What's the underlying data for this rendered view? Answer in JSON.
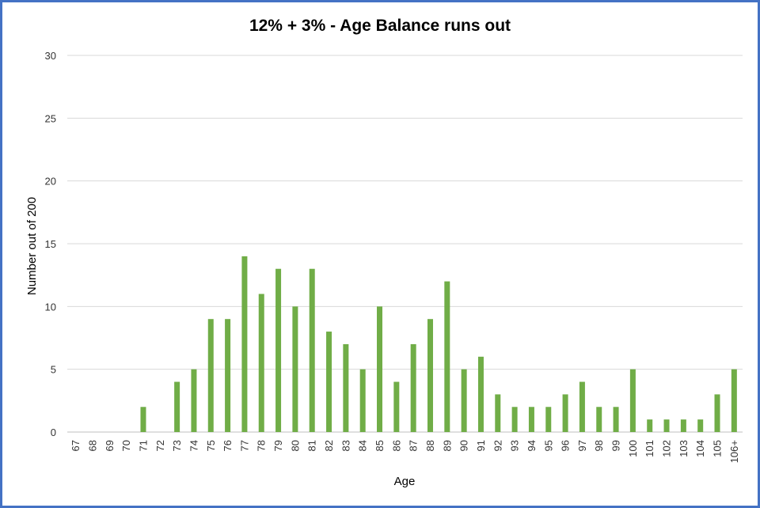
{
  "chart_data": {
    "type": "bar",
    "title": "12% + 3% - Age Balance runs out",
    "xlabel": "Age",
    "ylabel": "Number out of 200",
    "ylim": [
      0,
      30
    ],
    "yticks": [
      0,
      5,
      10,
      15,
      20,
      25,
      30
    ],
    "grid": true,
    "legend": "none",
    "bar_color": "#70ad47",
    "categories": [
      "67",
      "68",
      "69",
      "70",
      "71",
      "72",
      "73",
      "74",
      "75",
      "76",
      "77",
      "78",
      "79",
      "80",
      "81",
      "82",
      "83",
      "84",
      "85",
      "86",
      "87",
      "88",
      "89",
      "90",
      "91",
      "92",
      "93",
      "94",
      "95",
      "96",
      "97",
      "98",
      "99",
      "100",
      "101",
      "102",
      "103",
      "104",
      "105",
      "106+"
    ],
    "values": [
      0,
      0,
      0,
      0,
      2,
      0,
      4,
      5,
      9,
      9,
      14,
      11,
      13,
      10,
      13,
      8,
      7,
      5,
      10,
      4,
      7,
      9,
      12,
      5,
      6,
      3,
      2,
      2,
      2,
      3,
      4,
      2,
      2,
      5,
      1,
      1,
      1,
      1,
      3,
      5
    ]
  }
}
